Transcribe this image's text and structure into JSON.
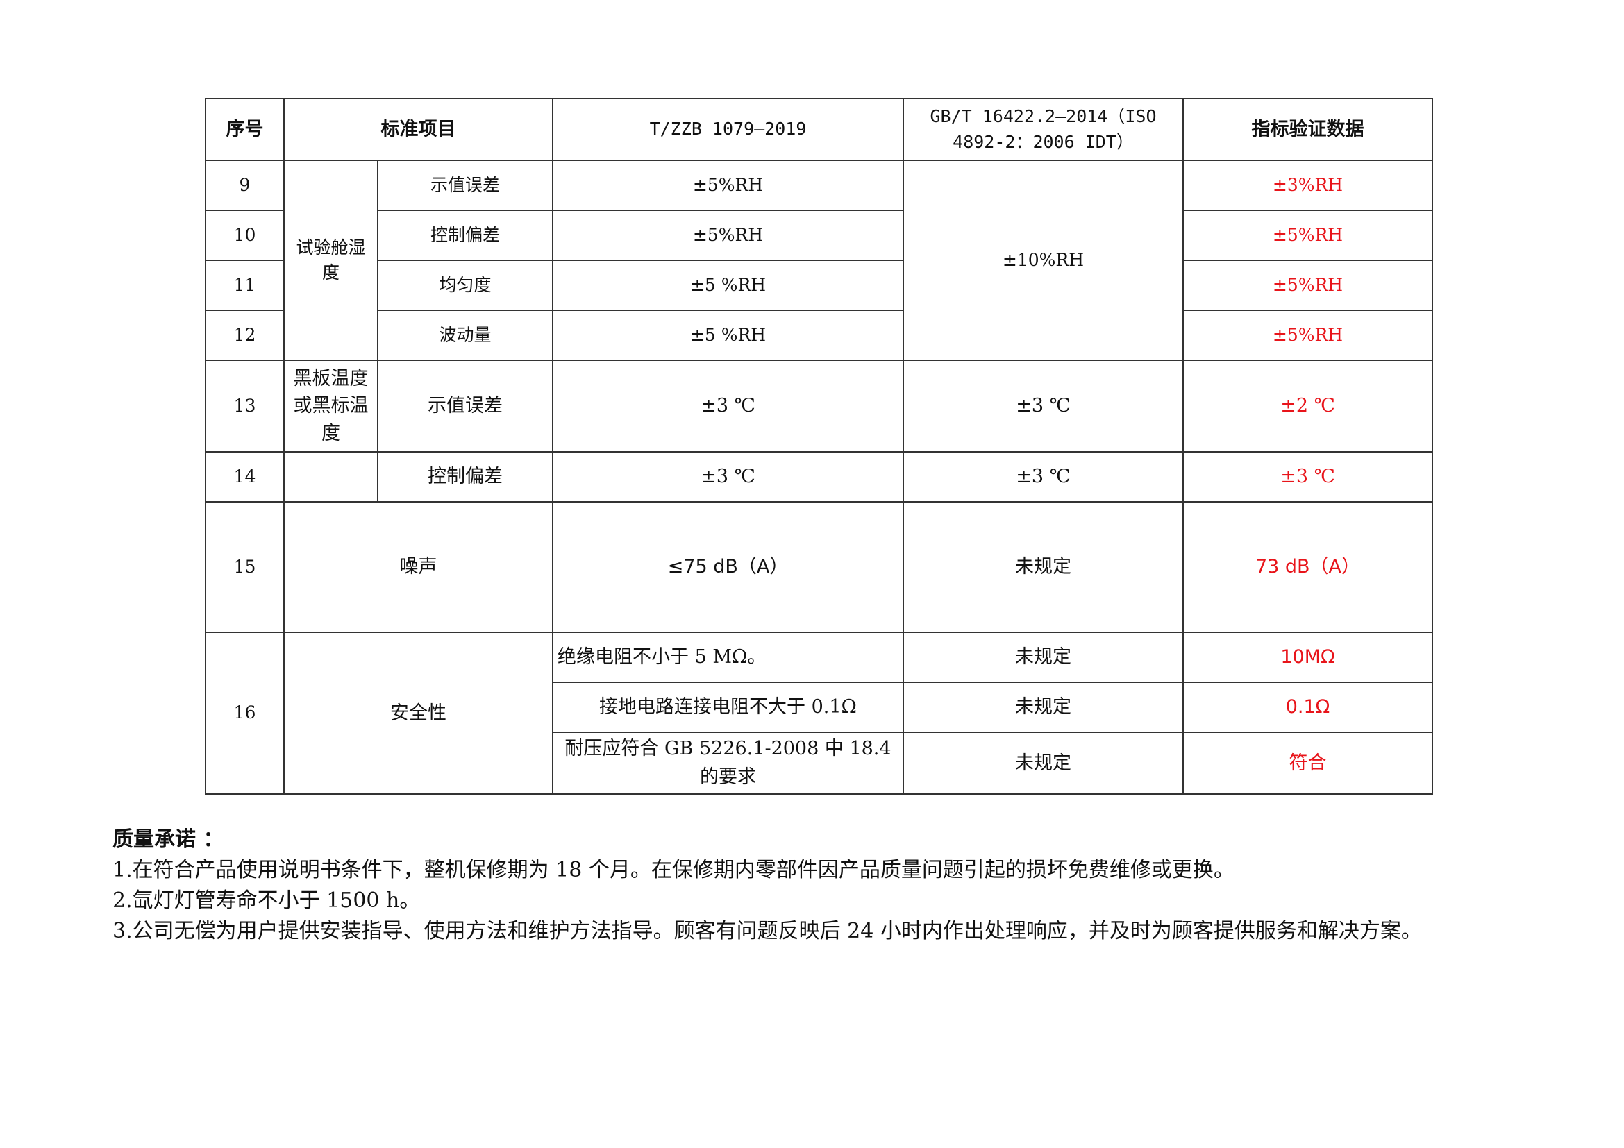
{
  "table": {
    "headers": [
      "序号",
      "标准项目",
      "T/ZZB 1079—2019",
      "GB/T 16422.2—2014（ISO 4892-2：2006 IDT）",
      "指标验证数据"
    ],
    "humidity_group": "试验舱湿度",
    "humidity_gb": "±10%RH",
    "rows": [
      {
        "no": "9",
        "item": "示值误差",
        "tzzb": "±5%RH",
        "verified": "±3%RH"
      },
      {
        "no": "10",
        "item": "控制偏差",
        "tzzb": "±5%RH",
        "verified": "±5%RH"
      },
      {
        "no": "11",
        "item": "均匀度",
        "tzzb": "±5 %RH",
        "verified": "±5%RH"
      },
      {
        "no": "12",
        "item": "波动量",
        "tzzb": "±5 %RH",
        "verified": "±5%RH"
      },
      {
        "no": "13",
        "group": "黑板温度或黑标温度",
        "item": "示值误差",
        "tzzb": "±3 ℃",
        "gb": "±3 ℃",
        "verified": "±2 ℃"
      },
      {
        "no": "14",
        "group": "",
        "item": "控制偏差",
        "tzzb": "±3 ℃",
        "gb": "±3 ℃",
        "verified": "±3 ℃"
      },
      {
        "no": "15",
        "item": "噪声",
        "tzzb": "≤75 dB（A）",
        "gb": "未规定",
        "verified": "73 dB（A）"
      }
    ],
    "safety": {
      "no": "16",
      "item": "安全性",
      "subrows": [
        {
          "tzzb": "绝缘电阻不小于 5 MΩ。",
          "gb": "未规定",
          "verified": "10MΩ"
        },
        {
          "tzzb": "接地电路连接电阻不大于 0.1Ω",
          "gb": "未规定",
          "verified": "0.1Ω"
        },
        {
          "tzzb": "耐压应符合 GB 5226.1-2008 中 18.4 的要求",
          "gb": "未规定",
          "verified": "符合"
        }
      ]
    }
  },
  "notes": {
    "title": "质量承诺 ：",
    "items": [
      "1.在符合产品使用说明书条件下，整机保修期为 18 个月。在保修期内零部件因产品质量问题引起的损坏免费维修或更换。",
      "2.氙灯灯管寿命不小于 1500 h。",
      "3.公司无偿为用户提供安装指导、使用方法和维护方法指导。顾客有问题反映后 24 小时内作出处理响应，并及时为顾客提供服务和解决方案。"
    ]
  },
  "colors": {
    "verified_text": "#e8141a",
    "border": "#333333"
  }
}
